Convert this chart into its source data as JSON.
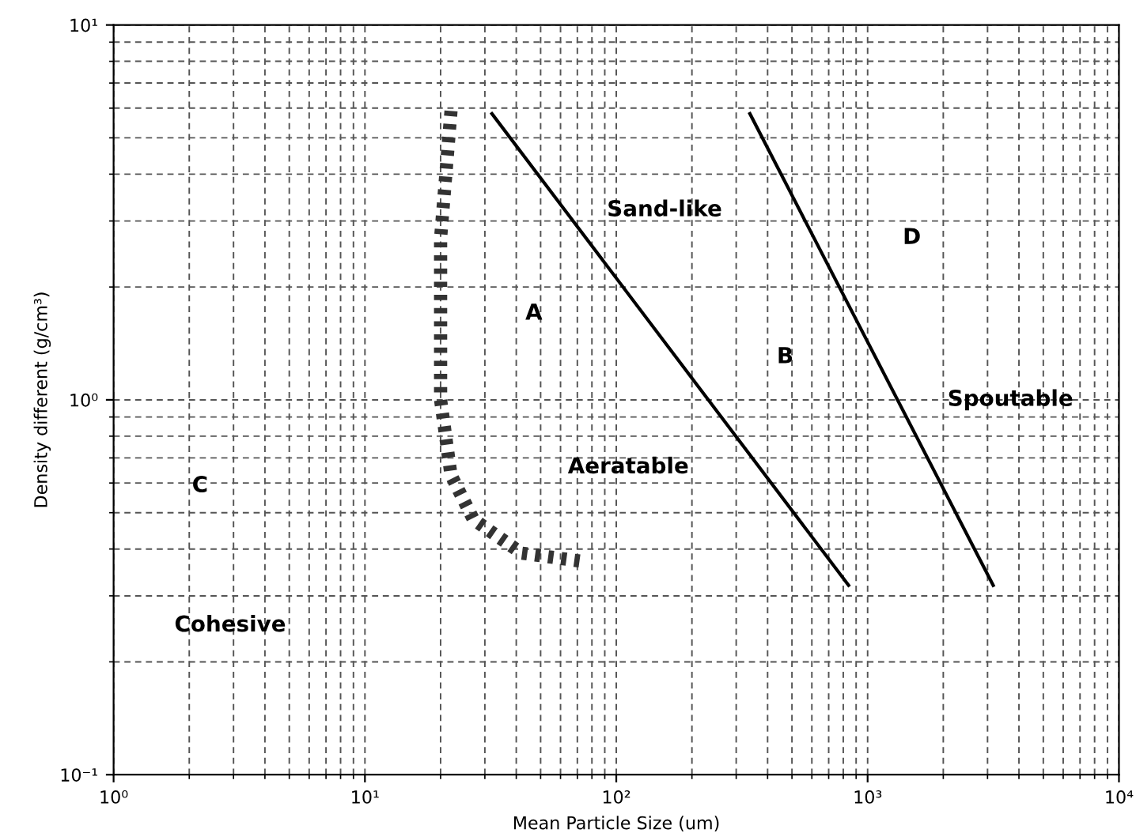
{
  "chart_data": {
    "type": "line",
    "xlabel": "Mean Particle Size (um)",
    "ylabel": "Density different (g/cm³)",
    "log": "xy",
    "xlim": [
      1,
      10000
    ],
    "ylim": [
      0.1,
      10
    ],
    "xticks": [
      {
        "value": 1,
        "label": "10⁰"
      },
      {
        "value": 10,
        "label": "10¹"
      },
      {
        "value": 100,
        "label": "10²"
      },
      {
        "value": 1000,
        "label": "10³"
      },
      {
        "value": 10000,
        "label": "10⁴"
      }
    ],
    "yticks": [
      {
        "value": 0.1,
        "label": "10⁻¹"
      },
      {
        "value": 1,
        "label": "10⁰"
      },
      {
        "value": 10,
        "label": "10¹"
      }
    ],
    "grid": true,
    "marker": "none",
    "series": [
      {
        "color": "#000000",
        "x": [
          32,
          840
        ],
        "values": [
          5.8,
          0.32
        ],
        "line_style": "solid"
      },
      {
        "color": "#000000",
        "x": [
          340,
          3160
        ],
        "values": [
          5.8,
          0.32
        ],
        "line_style": "solid"
      },
      {
        "color": "#333333",
        "x": [
          22,
          20,
          20,
          22,
          27,
          42,
          75
        ],
        "values": [
          5.9,
          2.7,
          1.0,
          0.63,
          0.48,
          0.39,
          0.37
        ],
        "line_style": "dashed"
      }
    ],
    "annotations": [
      "Sand-like",
      "D",
      "A",
      "B",
      "Spoutable",
      "Aeratable",
      "C",
      "Cohesive"
    ]
  }
}
